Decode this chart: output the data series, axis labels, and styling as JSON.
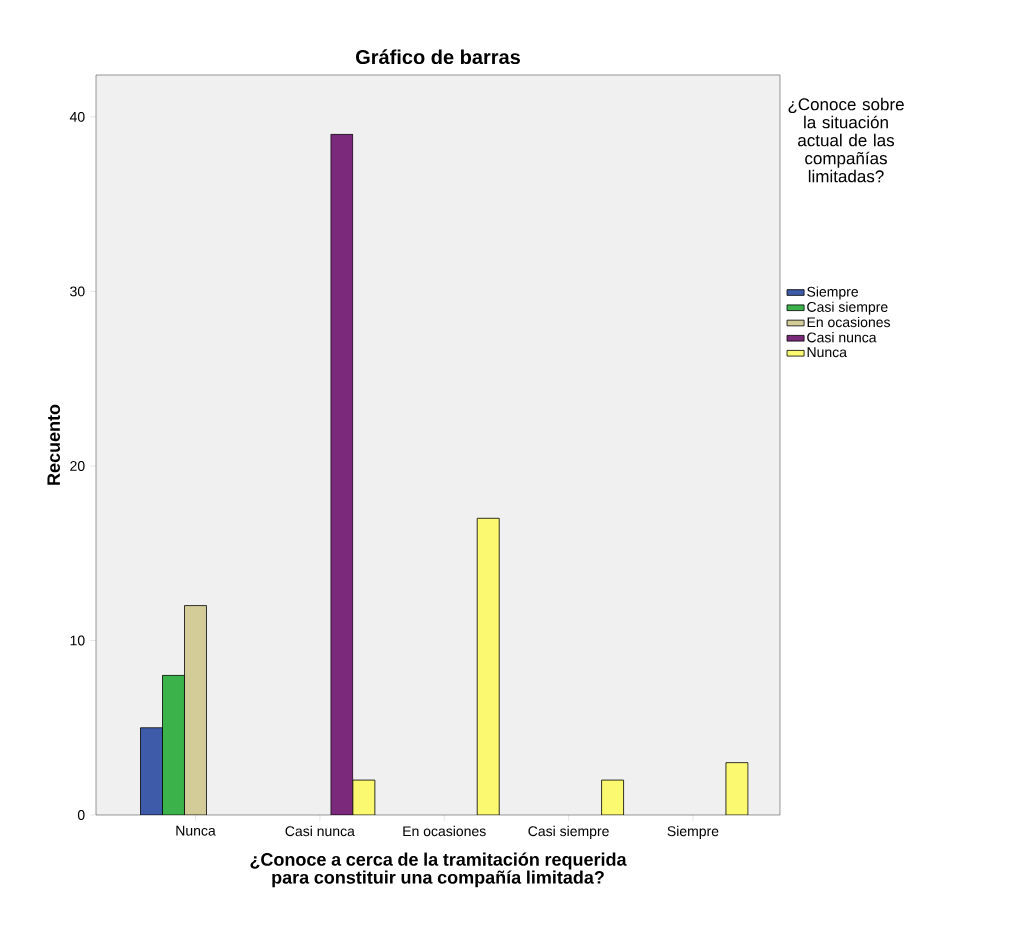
{
  "chart_data": {
    "type": "bar",
    "title": "Gráfico de barras",
    "xlabel": "¿Conoce a cerca de la tramitación requerida para constituir una compañía limitada?",
    "ylabel": "Recuento",
    "legend_title": "¿Conoce sobre la situación actual de las compañías limitadas?",
    "categories": [
      "Nunca",
      "Casi nunca",
      "En ocasiones",
      "Casi siempre",
      "Siempre"
    ],
    "series": [
      {
        "name": "Siempre",
        "color": "#3e5ba9",
        "values": [
          5,
          null,
          null,
          null,
          null
        ]
      },
      {
        "name": "Casi siempre",
        "color": "#3cb34a",
        "values": [
          8,
          null,
          null,
          null,
          null
        ]
      },
      {
        "name": "En ocasiones",
        "color": "#d4cc98",
        "values": [
          12,
          null,
          null,
          null,
          null
        ]
      },
      {
        "name": "Casi nunca",
        "color": "#7b2a7b",
        "values": [
          null,
          39,
          null,
          null,
          null
        ]
      },
      {
        "name": "Nunca",
        "color": "#fbf96f",
        "values": [
          null,
          2,
          17,
          2,
          3
        ]
      }
    ],
    "ylim": [
      0,
      42.4
    ],
    "yticks": [
      0,
      10,
      20,
      30,
      40
    ],
    "grid": false,
    "legend": "right"
  }
}
